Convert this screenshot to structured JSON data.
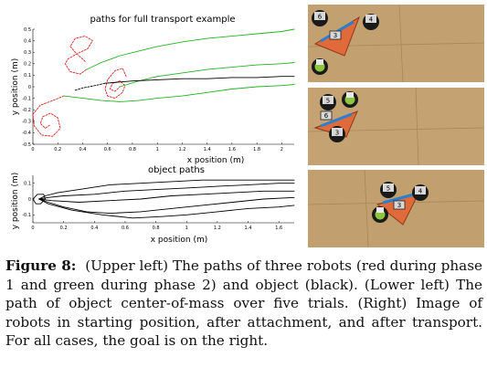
{
  "figure": {
    "caption_label": "Figure 8:",
    "caption_text": "(Upper left) The paths of three robots (red during phase 1 and green during phase 2) and object (black). (Lower left) The path of object center-of-mass over five trials. (Right) Image of robots in starting position, after attachment, and after transport. For all cases, the goal is on the right."
  },
  "plots": {
    "upper": {
      "title": "paths for full transport example",
      "xlabel": "x position (m)",
      "ylabel": "y position (m)",
      "xticks": [
        "0",
        "0.2",
        "0.4",
        "0.6",
        "0.8",
        "1",
        "1.2",
        "1.4",
        "1.6",
        "1.8",
        "2"
      ],
      "yticks": [
        "0.5",
        "0.4",
        "0.3",
        "0.2",
        "0.1",
        "0",
        "-0.1",
        "-0.2",
        "-0.3",
        "-0.4",
        "-0.5"
      ]
    },
    "lower": {
      "title": "object paths",
      "xlabel": "x position (m)",
      "ylabel": "y position (m)",
      "xticks": [
        "0",
        "0.2",
        "0.4",
        "0.6",
        "0.8",
        "1",
        "1.2",
        "1.4",
        "1.6"
      ],
      "yticks": [
        "0.1",
        "0",
        "-0.1"
      ]
    }
  },
  "photos": [
    {
      "markers": [
        "6",
        "3",
        "4"
      ]
    },
    {
      "markers": [
        "5",
        "6",
        "3"
      ]
    },
    {
      "markers": [
        "5",
        "3",
        "4"
      ]
    }
  ],
  "colors": {
    "phase1": "#e02020",
    "phase2": "#22b422",
    "object": "#000000",
    "floor": "#c2a070",
    "triangle": "#e06a3a",
    "stripe": "#2a7fd0"
  },
  "chart_data": [
    {
      "type": "line",
      "title": "paths for full transport example",
      "xlabel": "x position (m)",
      "ylabel": "y position (m)",
      "xlim": [
        0,
        2.1
      ],
      "ylim": [
        -0.5,
        0.5
      ],
      "series": [
        {
          "color": "phase1",
          "style": "dashed",
          "x": [
            0.42,
            0.34,
            0.3,
            0.34,
            0.42,
            0.48,
            0.44,
            0.36,
            0.28,
            0.26,
            0.3,
            0.38,
            0.43
          ],
          "y": [
            0.22,
            0.3,
            0.35,
            0.42,
            0.44,
            0.4,
            0.33,
            0.29,
            0.24,
            0.2,
            0.13,
            0.11,
            0.15
          ]
        },
        {
          "color": "phase2",
          "style": "solid",
          "x": [
            0.43,
            0.55,
            0.7,
            0.85,
            1.0,
            1.2,
            1.4,
            1.6,
            1.8,
            2.0,
            2.1
          ],
          "y": [
            0.15,
            0.21,
            0.27,
            0.31,
            0.35,
            0.39,
            0.42,
            0.44,
            0.46,
            0.48,
            0.5
          ]
        },
        {
          "color": "phase1",
          "style": "dashed",
          "x": [
            0.75,
            0.72,
            0.66,
            0.6,
            0.58,
            0.6,
            0.66,
            0.72,
            0.74,
            0.7,
            0.64,
            0.62,
            0.66,
            0.7
          ],
          "y": [
            0.09,
            0.16,
            0.14,
            0.06,
            -0.02,
            -0.08,
            -0.1,
            -0.05,
            0.01,
            0.05,
            0.03,
            -0.02,
            -0.04,
            0.0
          ]
        },
        {
          "color": "phase2",
          "style": "solid",
          "x": [
            0.7,
            0.85,
            1.0,
            1.2,
            1.4,
            1.6,
            1.8,
            2.0,
            2.1
          ],
          "y": [
            0.0,
            0.05,
            0.09,
            0.12,
            0.15,
            0.17,
            0.19,
            0.2,
            0.21
          ]
        },
        {
          "color": "object",
          "style": "dashed",
          "x": [
            0.34,
            0.4,
            0.5,
            0.58
          ],
          "y": [
            -0.03,
            -0.01,
            0.01,
            0.03
          ]
        },
        {
          "color": "object",
          "style": "solid",
          "x": [
            0.58,
            0.8,
            1.0,
            1.2,
            1.4,
            1.6,
            1.8,
            2.0,
            2.1
          ],
          "y": [
            0.03,
            0.05,
            0.06,
            0.07,
            0.07,
            0.08,
            0.08,
            0.09,
            0.09
          ]
        },
        {
          "color": "phase1",
          "style": "dashed",
          "x": [
            0.25,
            0.16,
            0.06,
            0.0,
            0.01,
            0.07,
            0.16,
            0.22,
            0.2,
            0.14,
            0.08,
            0.06,
            0.1,
            0.14
          ],
          "y": [
            -0.08,
            -0.12,
            -0.16,
            -0.24,
            -0.34,
            -0.42,
            -0.43,
            -0.36,
            -0.27,
            -0.23,
            -0.26,
            -0.32,
            -0.36,
            -0.33
          ]
        },
        {
          "color": "phase2",
          "style": "solid",
          "x": [
            0.25,
            0.4,
            0.55,
            0.7,
            0.85,
            1.0,
            1.2,
            1.4,
            1.6,
            1.8,
            2.0,
            2.1
          ],
          "y": [
            -0.08,
            -0.1,
            -0.12,
            -0.13,
            -0.12,
            -0.1,
            -0.08,
            -0.05,
            -0.02,
            0.0,
            0.01,
            0.02
          ]
        }
      ]
    },
    {
      "type": "line",
      "title": "object paths",
      "xlabel": "x position (m)",
      "ylabel": "y position (m)",
      "xlim": [
        0,
        1.7
      ],
      "ylim": [
        -0.15,
        0.15
      ],
      "series": [
        {
          "color": "object",
          "x": [
            0.04,
            0.08,
            0.16,
            0.3,
            0.5,
            0.7,
            0.9,
            1.1,
            1.3,
            1.5,
            1.6,
            1.7
          ],
          "y": [
            0.0,
            0.02,
            0.04,
            0.06,
            0.09,
            0.1,
            0.11,
            0.12,
            0.12,
            0.12,
            0.12,
            0.12
          ]
        },
        {
          "color": "object",
          "x": [
            0.04,
            0.1,
            0.2,
            0.4,
            0.6,
            0.8,
            1.0,
            1.2,
            1.4,
            1.6,
            1.7
          ],
          "y": [
            0.0,
            0.01,
            0.02,
            0.03,
            0.05,
            0.06,
            0.07,
            0.08,
            0.09,
            0.1,
            0.1
          ]
        },
        {
          "color": "object",
          "x": [
            0.04,
            0.12,
            0.3,
            0.5,
            0.7,
            0.9,
            1.1,
            1.3,
            1.5,
            1.7
          ],
          "y": [
            0.0,
            -0.01,
            -0.02,
            -0.01,
            0.0,
            0.02,
            0.03,
            0.04,
            0.05,
            0.05
          ]
        },
        {
          "color": "object",
          "x": [
            0.04,
            0.1,
            0.2,
            0.35,
            0.5,
            0.7,
            0.9,
            1.1,
            1.3,
            1.5,
            1.7
          ],
          "y": [
            0.0,
            -0.02,
            -0.05,
            -0.08,
            -0.09,
            -0.08,
            -0.06,
            -0.04,
            -0.02,
            0.0,
            0.01
          ]
        },
        {
          "color": "object",
          "x": [
            0.04,
            0.1,
            0.25,
            0.45,
            0.65,
            0.85,
            1.0,
            1.2,
            1.4,
            1.6,
            1.7
          ],
          "y": [
            0.0,
            -0.03,
            -0.07,
            -0.1,
            -0.12,
            -0.11,
            -0.1,
            -0.08,
            -0.06,
            -0.05,
            -0.04
          ]
        },
        {
          "color": "object",
          "x": [
            0.0,
            0.03,
            0.07,
            0.08,
            0.05,
            0.02,
            0.0
          ],
          "y": [
            0.0,
            0.03,
            0.03,
            0.0,
            -0.03,
            -0.03,
            0.0
          ]
        }
      ]
    }
  ]
}
